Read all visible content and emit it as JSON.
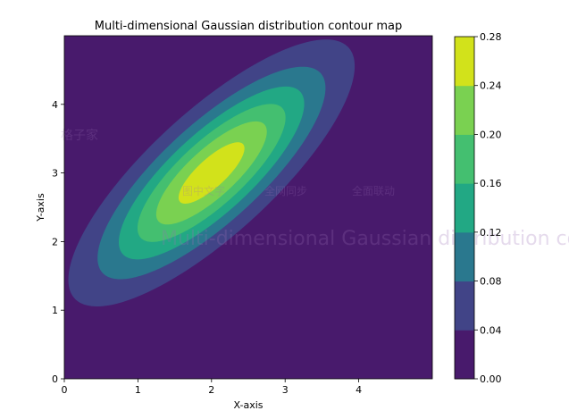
{
  "chart_data": {
    "type": "contour",
    "title": "Multi-dimensional Gaussian distribution contour map",
    "xlabel": "X-axis",
    "ylabel": "Y-axis",
    "xlim": [
      0,
      5
    ],
    "ylim": [
      0,
      5
    ],
    "xticks": [
      "0",
      "1",
      "2",
      "3",
      "4"
    ],
    "yticks": [
      "0",
      "1",
      "2",
      "3",
      "4"
    ],
    "mean": [
      2,
      3
    ],
    "covariance": [
      [
        1,
        0.8
      ],
      [
        0.8,
        1
      ]
    ],
    "levels": [
      0.0,
      0.04,
      0.08,
      0.12,
      0.16,
      0.2,
      0.24,
      0.28
    ],
    "colorbar_ticks": [
      "0.00",
      "0.04",
      "0.08",
      "0.12",
      "0.16",
      "0.20",
      "0.24",
      "0.28"
    ],
    "colormap": [
      "#481a6c",
      "#414487",
      "#2a788e",
      "#22a884",
      "#44bf70",
      "#7ad151",
      "#d2e21b"
    ],
    "colorbar": "right",
    "grid": false
  },
  "watermark": {
    "brand": "格子家",
    "line1": [
      "图中文字",
      "全网同步",
      "全面联动"
    ],
    "line2": "Multi-dimensional Gaussian distribution contour map"
  }
}
